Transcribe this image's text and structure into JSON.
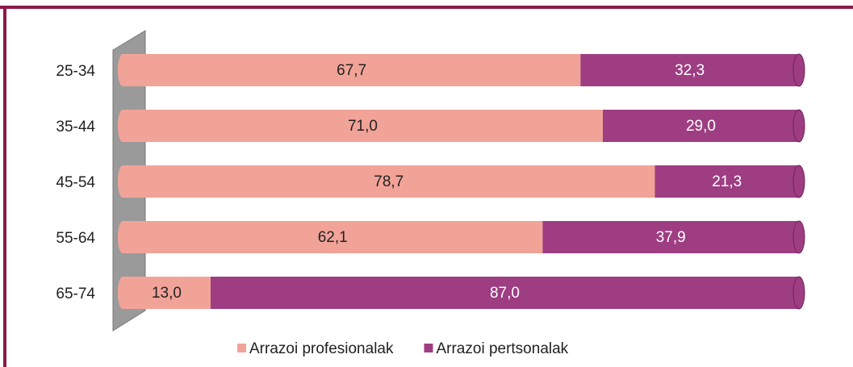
{
  "chart_data": {
    "type": "stacked_bar_horizontal",
    "categories": [
      "25-34",
      "35-44",
      "45-54",
      "55-64",
      "65-74"
    ],
    "series": [
      {
        "name": "Arrazoi profesionalak",
        "color": "#f2a398",
        "values": [
          67.7,
          71.0,
          78.7,
          62.1,
          13.0
        ],
        "value_labels": [
          "67,7",
          "71,0",
          "78,7",
          "62,1",
          "13,0"
        ]
      },
      {
        "name": "Arrazoi pertsonalak",
        "color": "#9e3d82",
        "values": [
          32.3,
          29.0,
          21.3,
          37.9,
          87.0
        ],
        "value_labels": [
          "32,3",
          "29,0",
          "21,3",
          "37,9",
          "87,0"
        ]
      }
    ],
    "xlim": [
      0,
      100
    ]
  }
}
